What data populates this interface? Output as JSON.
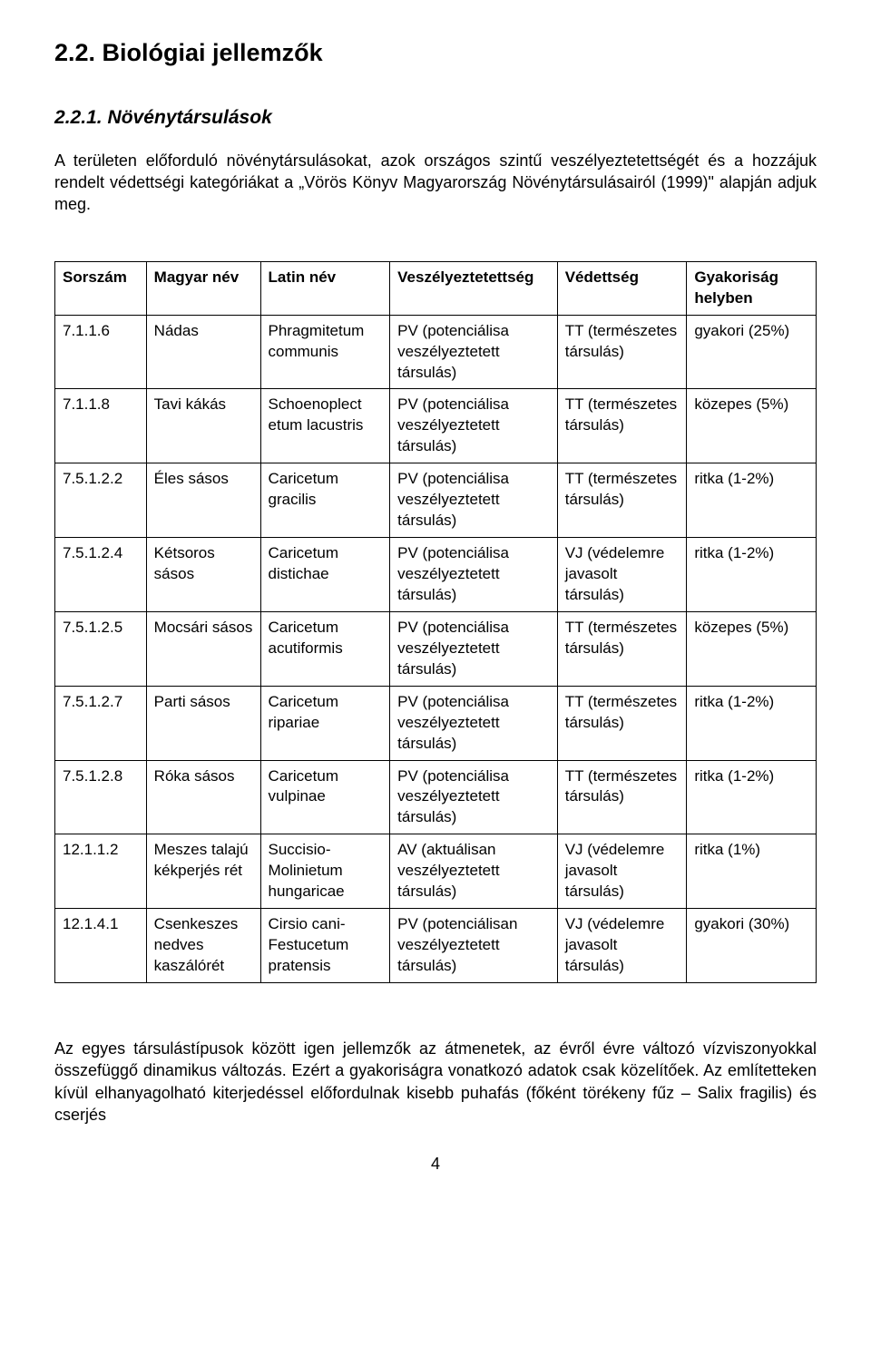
{
  "section_title": "2.2. Biológiai jellemzők",
  "subsection_title": "2.2.1. Növénytársulások",
  "intro_text": "A területen előforduló növénytársulásokat, azok országos szintű veszélyeztetettségét és a hozzájuk rendelt védettségi kategóriákat a „Vörös Könyv Magyarország Növénytársulásairól (1999)\" alapján adjuk meg.",
  "table": {
    "columns": [
      "Sorszám",
      "Magyar név",
      "Latin név",
      "Veszélyeztetettség",
      "Védettség",
      "Gyakoriság helyben"
    ],
    "rows": [
      {
        "sorszam": "7.1.1.6",
        "magyar": "Nádas",
        "latin": "Phragmitetum communis",
        "vesz": "PV (potenciálisa veszélyeztetett társulás)",
        "ved": "TT (természetes társulás)",
        "gyak": "gyakori (25%)"
      },
      {
        "sorszam": "7.1.1.8",
        "magyar": "Tavi kákás",
        "latin": "Schoenoplect etum lacustris",
        "vesz": "PV (potenciálisa veszélyeztetett társulás)",
        "ved": "TT (természetes társulás)",
        "gyak": "közepes (5%)"
      },
      {
        "sorszam": "7.5.1.2.2",
        "magyar": "Éles sásos",
        "latin": "Caricetum gracilis",
        "vesz": "PV (potenciálisa veszélyeztetett társulás)",
        "ved": "TT (természetes társulás)",
        "gyak": "ritka (1-2%)"
      },
      {
        "sorszam": "7.5.1.2.4",
        "magyar": "Kétsoros sásos",
        "latin": "Caricetum distichae",
        "vesz": "PV (potenciálisa veszélyeztetett társulás)",
        "ved": "VJ (védelemre javasolt társulás)",
        "gyak": "ritka (1-2%)"
      },
      {
        "sorszam": "7.5.1.2.5",
        "magyar": "Mocsári sásos",
        "latin": "Caricetum acutiformis",
        "vesz": "PV (potenciálisa veszélyeztetett társulás)",
        "ved": "TT (természetes társulás)",
        "gyak": "közepes (5%)"
      },
      {
        "sorszam": "7.5.1.2.7",
        "magyar": "Parti sásos",
        "latin": "Caricetum ripariae",
        "vesz": "PV (potenciálisa veszélyeztetett társulás)",
        "ved": "TT (természetes társulás)",
        "gyak": "ritka (1-2%)"
      },
      {
        "sorszam": "7.5.1.2.8",
        "magyar": "Róka sásos",
        "latin": "Caricetum vulpinae",
        "vesz": "PV (potenciálisa veszélyeztetett társulás)",
        "ved": "TT (természetes társulás)",
        "gyak": "ritka (1-2%)"
      },
      {
        "sorszam": "12.1.1.2",
        "magyar": "Meszes talajú kékperjés rét",
        "latin": "Succisio-Molinietum hungaricae",
        "vesz": "AV (aktuálisan veszélyeztetett társulás)",
        "ved": "VJ (védelemre javasolt társulás)",
        "gyak": "ritka (1%)"
      },
      {
        "sorszam": "12.1.4.1",
        "magyar": "Csenkeszes nedves kaszálórét",
        "latin": "Cirsio cani-Festucetum pratensis",
        "vesz": "PV (potenciálisan veszélyeztetett társulás)",
        "ved": "VJ (védelemre javasolt társulás)",
        "gyak": "gyakori (30%)"
      }
    ]
  },
  "outro_text": "Az egyes társulástípusok között igen jellemzők az átmenetek, az évről évre változó vízviszonyokkal összefüggő dinamikus változás. Ezért a gyakoriságra vonatkozó adatok csak közelítőek. Az említetteken kívül elhanyagolható kiterjedéssel előfordulnak kisebb puhafás (főként törékeny fűz – Salix fragilis) és cserjés",
  "page_number": "4",
  "colors": {
    "text": "#000000",
    "background": "#ffffff",
    "border": "#000000"
  },
  "font": {
    "family": "Arial",
    "body_size_pt": 13,
    "table_size_pt": 12
  }
}
